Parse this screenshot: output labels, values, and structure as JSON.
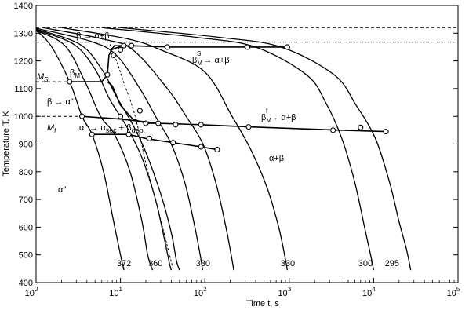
{
  "chart_data": {
    "type": "line",
    "title": "",
    "xlabel": "Time t, s",
    "ylabel": "Temperature T, K",
    "xscale": "log",
    "xlim": [
      1,
      100000
    ],
    "ylim": [
      400,
      1400
    ],
    "xticks": [
      {
        "value": 1,
        "base": "10",
        "exp": "0"
      },
      {
        "value": 10,
        "base": "10",
        "exp": "1"
      },
      {
        "value": 100,
        "base": "10",
        "exp": "2"
      },
      {
        "value": 1000,
        "base": "10",
        "exp": "3"
      },
      {
        "value": 10000,
        "base": "10",
        "exp": "4"
      },
      {
        "value": 100000,
        "base": "10",
        "exp": "5"
      }
    ],
    "yticks": [
      "400",
      "500",
      "600",
      "700",
      "800",
      "900",
      "1000",
      "1100",
      "1200",
      "1300",
      "1400"
    ],
    "grid": false,
    "reference_lines": [
      {
        "y": 1320,
        "style": "dashed"
      },
      {
        "y": 1268,
        "style": "dashed"
      }
    ],
    "cooling_curves": [
      {
        "label": "372",
        "points": [
          [
            1.0,
            1310
          ],
          [
            1.5,
            1255
          ],
          [
            2.5,
            1125
          ],
          [
            3.5,
            1000
          ],
          [
            4.6,
            935
          ],
          [
            6.3,
            800
          ],
          [
            8.3,
            620
          ],
          [
            10.0,
            500
          ],
          [
            11.0,
            445
          ]
        ]
      },
      {
        "label": "360",
        "points": [
          [
            1.0,
            1310
          ],
          [
            2.2,
            1255
          ],
          [
            3.8,
            1125
          ],
          [
            5.8,
            1000
          ],
          [
            8.5,
            935
          ],
          [
            13.0,
            800
          ],
          [
            18.0,
            620
          ],
          [
            21.0,
            500
          ],
          [
            24.0,
            445
          ]
        ]
      },
      {
        "label": "",
        "points": [
          [
            1.0,
            1312
          ],
          [
            2.8,
            1260
          ],
          [
            5.0,
            1170
          ],
          [
            7.5,
            1060
          ],
          [
            12.0,
            960
          ],
          [
            18.0,
            850
          ],
          [
            26.0,
            700
          ],
          [
            33.0,
            560
          ],
          [
            38.0,
            470
          ],
          [
            40.0,
            445
          ]
        ]
      },
      {
        "label": "",
        "points": [
          [
            1.0,
            1315
          ],
          [
            3.3,
            1260
          ],
          [
            6.0,
            1170
          ],
          [
            9.0,
            1070
          ],
          [
            14.0,
            970
          ],
          [
            20.0,
            870
          ],
          [
            30.0,
            720
          ],
          [
            40.0,
            580
          ],
          [
            46.0,
            480
          ],
          [
            50.0,
            445
          ]
        ]
      },
      {
        "label": "330",
        "points": [
          [
            1.0,
            1318
          ],
          [
            4.5,
            1270
          ],
          [
            9.0,
            1220
          ],
          [
            17.0,
            1100
          ],
          [
            26.0,
            1000
          ],
          [
            40.0,
            900
          ],
          [
            58.0,
            760
          ],
          [
            75.0,
            610
          ],
          [
            88.0,
            500
          ],
          [
            94.0,
            445
          ]
        ]
      },
      {
        "label": "",
        "points": [
          [
            1.2,
            1320
          ],
          [
            6.0,
            1280
          ],
          [
            14.0,
            1240
          ],
          [
            36.0,
            1100
          ],
          [
            60.0,
            1000
          ],
          [
            95.0,
            900
          ],
          [
            135.0,
            760
          ],
          [
            175.0,
            610
          ],
          [
            205.0,
            500
          ],
          [
            220.0,
            445
          ]
        ]
      },
      {
        "label": "330",
        "points": [
          [
            2.0,
            1320
          ],
          [
            12.0,
            1280
          ],
          [
            30.0,
            1240
          ],
          [
            100.0,
            1160
          ],
          [
            210.0,
            1000
          ],
          [
            350.0,
            880
          ],
          [
            550.0,
            740
          ],
          [
            750.0,
            600
          ],
          [
            880.0,
            500
          ],
          [
            950.0,
            445
          ]
        ]
      },
      {
        "label": "300",
        "points": [
          [
            6.0,
            1320
          ],
          [
            80.0,
            1285
          ],
          [
            400.0,
            1250
          ],
          [
            1600.0,
            1150
          ],
          [
            2700.0,
            1050
          ],
          [
            4200.0,
            920
          ],
          [
            6000.0,
            760
          ],
          [
            7800.0,
            600
          ],
          [
            9200.0,
            500
          ],
          [
            10000.0,
            445
          ]
        ]
      },
      {
        "label": "295",
        "points": [
          [
            10.0,
            1320
          ],
          [
            150.0,
            1285
          ],
          [
            800.0,
            1250
          ],
          [
            3400.0,
            1150
          ],
          [
            6200.0,
            1040
          ],
          [
            10500.0,
            920
          ],
          [
            15500.0,
            760
          ],
          [
            20000.0,
            620
          ],
          [
            24500.0,
            520
          ],
          [
            27500.0,
            445
          ]
        ]
      }
    ],
    "dashed_curves": [
      {
        "label": "",
        "points": [
          [
            7.5,
            1260
          ],
          [
            9.0,
            1200
          ],
          [
            11.0,
            1120
          ],
          [
            14.0,
            1030
          ],
          [
            17.0,
            930
          ],
          [
            20.0,
            830
          ],
          [
            26.0,
            700
          ],
          [
            34.0,
            560
          ],
          [
            42.0,
            450
          ]
        ]
      }
    ],
    "phase_lines": [
      {
        "label": "M_S",
        "points": [
          [
            2.5,
            1125
          ],
          [
            6.0,
            1125
          ],
          [
            7.0,
            1150
          ],
          [
            7.3,
            1220
          ],
          [
            7.8,
            1240
          ],
          [
            8.5,
            1255
          ],
          [
            10.5,
            1255
          ]
        ]
      },
      {
        "label": "beta_M_s",
        "points": [
          [
            7.8,
            1240
          ],
          [
            10.5,
            1255
          ],
          [
            13.0,
            1255
          ],
          [
            40.0,
            1250
          ],
          [
            320.0,
            1250
          ],
          [
            950.0,
            1250
          ]
        ]
      },
      {
        "label": "beta_to_alpha_double_prime_sec",
        "points": [
          [
            7.0,
            1125
          ],
          [
            8.0,
            1110
          ],
          [
            10.0,
            1040
          ],
          [
            14.0,
            990
          ],
          [
            20.0,
            975
          ],
          [
            28.0,
            975
          ]
        ]
      },
      {
        "label": "M_f",
        "points": [
          [
            3.5,
            1000
          ],
          [
            10.0,
            990
          ],
          [
            28.0,
            975
          ],
          [
            90.0,
            970
          ],
          [
            330.0,
            962
          ],
          [
            4000.0,
            950
          ],
          [
            14000.0,
            945
          ]
        ]
      },
      {
        "label": "alpha_sec",
        "points": [
          [
            4.6,
            935
          ],
          [
            12.5,
            935
          ],
          [
            20.0,
            920
          ],
          [
            42.0,
            905
          ],
          [
            90.0,
            890
          ],
          [
            140.0,
            880
          ]
        ]
      }
    ],
    "markers": [
      {
        "x": 2.5,
        "y": 1125
      },
      {
        "x": 3.5,
        "y": 1000
      },
      {
        "x": 4.6,
        "y": 935
      },
      {
        "x": 7.0,
        "y": 1150
      },
      {
        "x": 8.3,
        "y": 1220
      },
      {
        "x": 10.0,
        "y": 1240
      },
      {
        "x": 11.0,
        "y": 1255
      },
      {
        "x": 13.5,
        "y": 1255
      },
      {
        "x": 36.0,
        "y": 1250
      },
      {
        "x": 320.0,
        "y": 1250
      },
      {
        "x": 950.0,
        "y": 1250
      },
      {
        "x": 10.0,
        "y": 1000
      },
      {
        "x": 12.5,
        "y": 935
      },
      {
        "x": 17.0,
        "y": 1020
      },
      {
        "x": 20.0,
        "y": 975
      },
      {
        "x": 22.0,
        "y": 920
      },
      {
        "x": 28.0,
        "y": 975
      },
      {
        "x": 42.0,
        "y": 905
      },
      {
        "x": 45.0,
        "y": 970
      },
      {
        "x": 90.0,
        "y": 970
      },
      {
        "x": 90.0,
        "y": 890
      },
      {
        "x": 140.0,
        "y": 880
      },
      {
        "x": 330.0,
        "y": 962
      },
      {
        "x": 3300.0,
        "y": 950
      },
      {
        "x": 7000.0,
        "y": 960
      },
      {
        "x": 14000.0,
        "y": 945
      }
    ],
    "annotations": {
      "beta_alpha_top": "β → α+β",
      "beta_M_s_base": "β",
      "beta_M_s_sub": "M",
      "beta_M_s_sup": "S",
      "beta_M_s_rest": " → α+β",
      "beta_M": "β",
      "beta_M_sub": "M",
      "M_S": "M",
      "M_S_sub": "S",
      "beta_to_alpha_pp": "β → α″",
      "M_f": "M",
      "M_f_sub": "f",
      "alpha_pp_sec_a": "α″ → α",
      "alpha_pp_sec_sub": "sec",
      "alpha_pp_sec_b": " + β",
      "alpha_pp_sec_sub2": "dep.",
      "beta_M_f_base": "β",
      "beta_M_f_sub": "M",
      "beta_M_f_sup": "f",
      "beta_M_f_rest": " → α+β",
      "alpha_plus_beta": "α+β",
      "alpha_pp": "α″"
    },
    "curve_labels": [
      {
        "text": "372",
        "x": 11.0,
        "y": 460
      },
      {
        "text": "360",
        "x": 26.0,
        "y": 460
      },
      {
        "text": "330",
        "x": 95.0,
        "y": 460
      },
      {
        "text": "330",
        "x": 960.0,
        "y": 460
      },
      {
        "text": "300",
        "x": 8000.0,
        "y": 460
      },
      {
        "text": "295",
        "x": 16500.0,
        "y": 460
      }
    ]
  }
}
